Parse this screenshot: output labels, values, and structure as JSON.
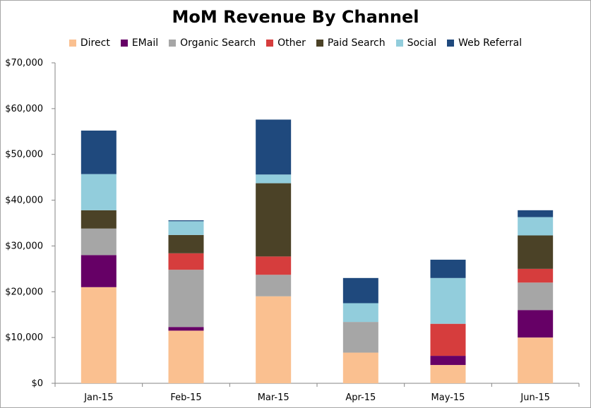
{
  "chart_data": {
    "type": "bar",
    "stacked": true,
    "title": "MoM Revenue By Channel",
    "xlabel": "",
    "ylabel": "",
    "categories": [
      "Jan-15",
      "Feb-15",
      "Mar-15",
      "Apr-15",
      "May-15",
      "Jun-15"
    ],
    "ylim": [
      0,
      70000
    ],
    "yticks": [
      0,
      10000,
      20000,
      30000,
      40000,
      50000,
      60000,
      70000
    ],
    "ytick_labels": [
      "$0",
      "$10,000",
      "$20,000",
      "$30,000",
      "$40,000",
      "$50,000",
      "$60,000",
      "$70,000"
    ],
    "grid": false,
    "legend_position": "top",
    "series": [
      {
        "name": "Direct",
        "color": "#fac090",
        "values": [
          21000,
          11500,
          19000,
          6700,
          4000,
          10000
        ]
      },
      {
        "name": "EMail",
        "color": "#660066",
        "values": [
          7000,
          800,
          0,
          0,
          2000,
          6000
        ]
      },
      {
        "name": "Organic Search",
        "color": "#a6a6a6",
        "values": [
          5800,
          12500,
          4700,
          6700,
          0,
          6000
        ]
      },
      {
        "name": "Other",
        "color": "#d63d3d",
        "values": [
          0,
          3600,
          4000,
          0,
          7000,
          3000
        ]
      },
      {
        "name": "Paid Search",
        "color": "#4b4227",
        "values": [
          4000,
          4000,
          16000,
          0,
          0,
          7300
        ]
      },
      {
        "name": "Social",
        "color": "#92cddc",
        "values": [
          7900,
          3000,
          1900,
          4100,
          10000,
          4000
        ]
      },
      {
        "name": "Web Referral",
        "color": "#1f497d",
        "values": [
          9500,
          200,
          12000,
          5500,
          4000,
          1500
        ]
      }
    ]
  }
}
